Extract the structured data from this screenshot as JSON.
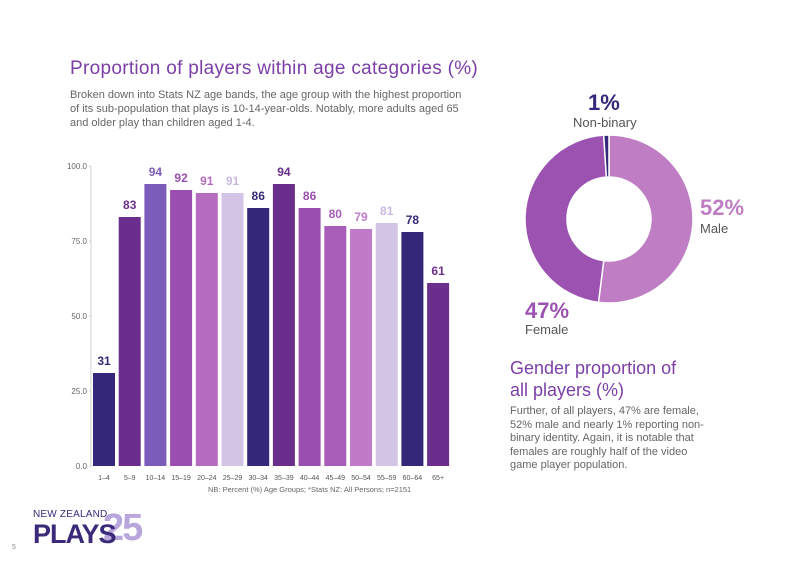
{
  "title": "Proportion of players within age categories (%)",
  "intro": "Broken down into Stats NZ age bands, the age group with the highest proportion of its sub-population that plays is 10-14-year-olds. Notably, more adults aged 65 and older play than children aged 1-4.",
  "footnote": "NB: Percent (%) Age Groups; *Stats NZ: All Persons; n=2151",
  "chart_data": [
    {
      "type": "bar",
      "categories": [
        "1–4",
        "5–9",
        "10–14",
        "15–19",
        "20–24",
        "25–29",
        "30–34",
        "35–39",
        "40–44",
        "45–49",
        "50–54",
        "55–59",
        "60–64",
        "65+"
      ],
      "values": [
        31,
        83,
        94,
        92,
        91,
        91,
        86,
        94,
        86,
        80,
        79,
        81,
        78,
        61
      ],
      "data_labels": [
        "31",
        "83",
        "94",
        "92",
        "91",
        "91",
        "86",
        "94",
        "86",
        "80",
        "79",
        "81",
        "78",
        "61"
      ],
      "colors": [
        "#35287a",
        "#6a2f8c",
        "#7c5cbb",
        "#9a4fb0",
        "#b56cc0",
        "#d3c3e4",
        "#35287a",
        "#6a2f8c",
        "#9a4fb0",
        "#a85eb8",
        "#c07bc8",
        "#d3c3e4",
        "#35287a",
        "#6a2f8c"
      ],
      "label_colors": [
        "#35287a",
        "#6a2f8c",
        "#7c5cbb",
        "#9a4fb0",
        "#b56cc0",
        "#c9b8e0",
        "#35287a",
        "#6a2f8c",
        "#9a4fb0",
        "#a85eb8",
        "#c07bc8",
        "#c9b8e0",
        "#35287a",
        "#6a2f8c"
      ],
      "ylim": [
        0,
        100
      ],
      "yticks": [
        "0.0",
        "25.0",
        "50.0",
        "75.0",
        "100.0"
      ],
      "grid": false
    },
    {
      "type": "pie",
      "style": "donut",
      "title": "Gender proportion of all players (%)",
      "labels": [
        "Male",
        "Female",
        "Non-binary"
      ],
      "values": [
        52,
        47,
        1
      ],
      "value_labels": [
        "52%",
        "47%",
        "1%"
      ],
      "colors": [
        "#bf7ec4",
        "#9b52b0",
        "#35287a"
      ]
    }
  ],
  "gender": {
    "title_line1": "Gender proportion of",
    "title_line2": "all players (%)",
    "body": "Further, of all players, 47% are female, 52% male and nearly 1% reporting non-binary identity. Again, it is notable that females are roughly half of the video game player population."
  },
  "logo": {
    "top": "NEW ZEALAND",
    "main": "PLAYS",
    "num": "25"
  },
  "page_number": "5",
  "colors": {
    "title": "#7b3fa6",
    "dark": "#35287a",
    "light": "#d3c3e4"
  }
}
